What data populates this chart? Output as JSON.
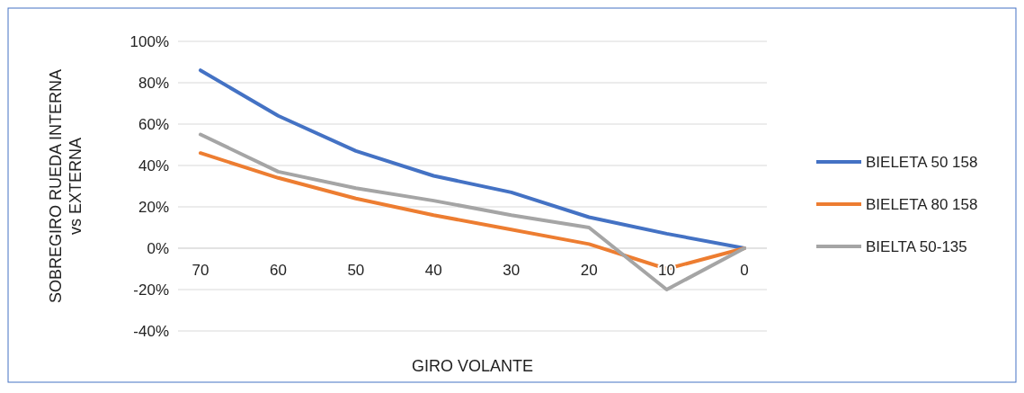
{
  "chart_data": {
    "type": "line",
    "xlabel": "GIRO VOLANTE",
    "ylabel": "SOBREGIRO RUEDA INTERNA\nvs EXTERNA",
    "categories": [
      "70",
      "60",
      "50",
      "40",
      "30",
      "20",
      "10",
      "0"
    ],
    "series": [
      {
        "name": "BIELETA 50 158",
        "color": "#4472c4",
        "values": [
          86,
          64,
          47,
          35,
          27,
          15,
          7,
          0
        ]
      },
      {
        "name": "BIELETA 80 158",
        "color": "#ed7d31",
        "values": [
          46,
          34,
          24,
          16,
          9,
          2,
          -10,
          0
        ]
      },
      {
        "name": "BIELTA 50-135",
        "color": "#a5a5a5",
        "values": [
          55,
          37,
          29,
          23,
          16,
          10,
          -20,
          0
        ]
      }
    ],
    "ylim": [
      -40,
      100
    ],
    "yticks": [
      {
        "value": -40,
        "label": "-40%"
      },
      {
        "value": -20,
        "label": "-20%"
      },
      {
        "value": 0,
        "label": "0%"
      },
      {
        "value": 20,
        "label": "20%"
      },
      {
        "value": 40,
        "label": "40%"
      },
      {
        "value": 60,
        "label": "60%"
      },
      {
        "value": 80,
        "label": "80%"
      },
      {
        "value": 100,
        "label": "100%"
      }
    ],
    "grid": "y",
    "legend": "right",
    "marker": "none",
    "line_style": "solid"
  }
}
